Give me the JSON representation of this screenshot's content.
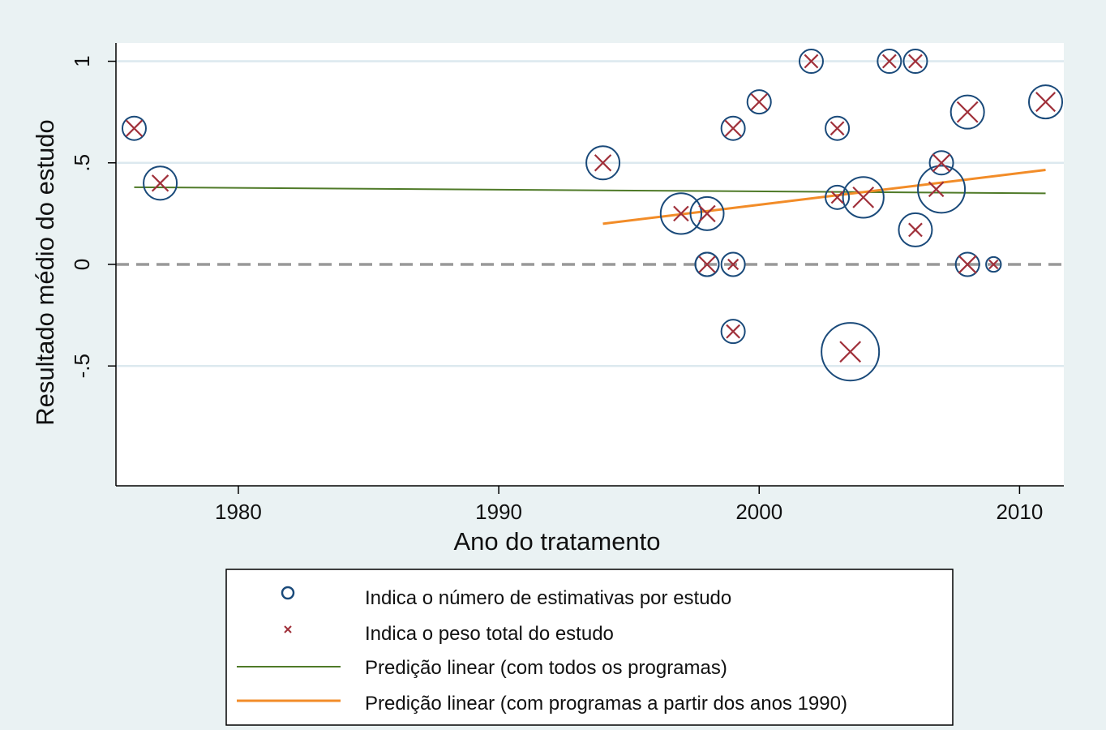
{
  "chart_data": {
    "type": "scatter",
    "title": "",
    "xlabel": "Ano do tratamento",
    "ylabel": "Resultado médio do estudo",
    "xlim": [
      1975.3,
      2011.7
    ],
    "ylim": [
      -1.09,
      1.09
    ],
    "x_ticks": [
      1980,
      1990,
      2000,
      2010
    ],
    "x_tick_labels": [
      "1980",
      "1990",
      "2000",
      "2010"
    ],
    "y_ticks": [
      1,
      0.5,
      0,
      -0.5
    ],
    "y_tick_labels": [
      "1",
      ".5",
      "0",
      "-.5"
    ],
    "grid": true,
    "reference_line": {
      "y": 0,
      "style": "dashed",
      "color": "#999999"
    },
    "colors": {
      "circle": "#1a4a7a",
      "cross": "#a0303a",
      "line_all": "#4f7a28",
      "line_1990": "#f28c28",
      "grid": "#dce9ef",
      "plot_bg": "#ffffff",
      "outer_bg": "#eaf2f3"
    },
    "series": [
      {
        "name": "Indica o número de estimativas por estudo",
        "kind": "circles",
        "points": [
          {
            "x": 1976,
            "y": 0.67,
            "size": 1
          },
          {
            "x": 1977,
            "y": 0.4,
            "size": 2
          },
          {
            "x": 1994,
            "y": 0.5,
            "size": 2
          },
          {
            "x": 1997,
            "y": 0.25,
            "size": 3
          },
          {
            "x": 1998,
            "y": 0.25,
            "size": 2
          },
          {
            "x": 1998,
            "y": 0.0,
            "size": 1
          },
          {
            "x": 1998,
            "y": 0.0,
            "size": 1
          },
          {
            "x": 1999,
            "y": 0.67,
            "size": 1
          },
          {
            "x": 1999,
            "y": 0.0,
            "size": 1
          },
          {
            "x": 1999,
            "y": -0.33,
            "size": 1
          },
          {
            "x": 2000,
            "y": 0.8,
            "size": 1
          },
          {
            "x": 2002,
            "y": 1.0,
            "size": 1
          },
          {
            "x": 2003,
            "y": 0.67,
            "size": 1
          },
          {
            "x": 2003,
            "y": 0.33,
            "size": 1
          },
          {
            "x": 2003.5,
            "y": -0.43,
            "size": 6
          },
          {
            "x": 2004,
            "y": 0.33,
            "size": 3
          },
          {
            "x": 2005,
            "y": 1.0,
            "size": 1
          },
          {
            "x": 2006,
            "y": 1.0,
            "size": 1
          },
          {
            "x": 2006,
            "y": 0.17,
            "size": 2
          },
          {
            "x": 2007,
            "y": 0.37,
            "size": 4
          },
          {
            "x": 2007,
            "y": 0.5,
            "size": 1
          },
          {
            "x": 2008,
            "y": 0.75,
            "size": 2
          },
          {
            "x": 2008,
            "y": 0.0,
            "size": 1
          },
          {
            "x": 2009,
            "y": 0.0,
            "size": 0.4
          },
          {
            "x": 2011,
            "y": 0.8,
            "size": 2
          }
        ]
      },
      {
        "name": "Indica o peso total do estudo",
        "kind": "crosses",
        "points": [
          {
            "x": 1976,
            "y": 0.67,
            "weight": 1.1
          },
          {
            "x": 1977,
            "y": 0.4,
            "weight": 1.1
          },
          {
            "x": 1994,
            "y": 0.5,
            "weight": 1.1
          },
          {
            "x": 1997,
            "y": 0.25,
            "weight": 1.0
          },
          {
            "x": 1998,
            "y": 0.25,
            "weight": 1.1
          },
          {
            "x": 1998,
            "y": 0.0,
            "weight": 1.1
          },
          {
            "x": 1999,
            "y": 0.67,
            "weight": 1.1
          },
          {
            "x": 1999,
            "y": 0.0,
            "weight": 0.7
          },
          {
            "x": 1999,
            "y": -0.33,
            "weight": 0.9
          },
          {
            "x": 2000,
            "y": 0.8,
            "weight": 1.1
          },
          {
            "x": 2002,
            "y": 1.0,
            "weight": 0.9
          },
          {
            "x": 2003,
            "y": 0.67,
            "weight": 0.9
          },
          {
            "x": 2003,
            "y": 0.33,
            "weight": 0.8
          },
          {
            "x": 2003.5,
            "y": -0.43,
            "weight": 1.4
          },
          {
            "x": 2004,
            "y": 0.33,
            "weight": 1.4
          },
          {
            "x": 2005,
            "y": 1.0,
            "weight": 0.9
          },
          {
            "x": 2006,
            "y": 1.0,
            "weight": 0.9
          },
          {
            "x": 2006,
            "y": 0.17,
            "weight": 0.9
          },
          {
            "x": 2006.8,
            "y": 0.37,
            "weight": 1.0
          },
          {
            "x": 2007,
            "y": 0.5,
            "weight": 1.2
          },
          {
            "x": 2008,
            "y": 0.75,
            "weight": 1.4
          },
          {
            "x": 2008,
            "y": 0.0,
            "weight": 1.2
          },
          {
            "x": 2009,
            "y": 0.0,
            "weight": 0.6
          },
          {
            "x": 2011,
            "y": 0.8,
            "weight": 1.3
          }
        ]
      },
      {
        "name": "Predição linear (com todos os programas)",
        "kind": "line",
        "x": [
          1976,
          2011
        ],
        "y": [
          0.38,
          0.35
        ]
      },
      {
        "name": "Predição linear (com programas a partir dos anos 1990)",
        "kind": "line",
        "x": [
          1994,
          2011
        ],
        "y": [
          0.2,
          0.465
        ]
      }
    ],
    "legend": {
      "placement": "bottom",
      "entries": [
        "Indica o número de estimativas por estudo",
        "Indica o peso total do estudo",
        "Predição linear (com todos os programas)",
        "Predição linear (com programas a partir dos anos 1990)"
      ]
    }
  }
}
